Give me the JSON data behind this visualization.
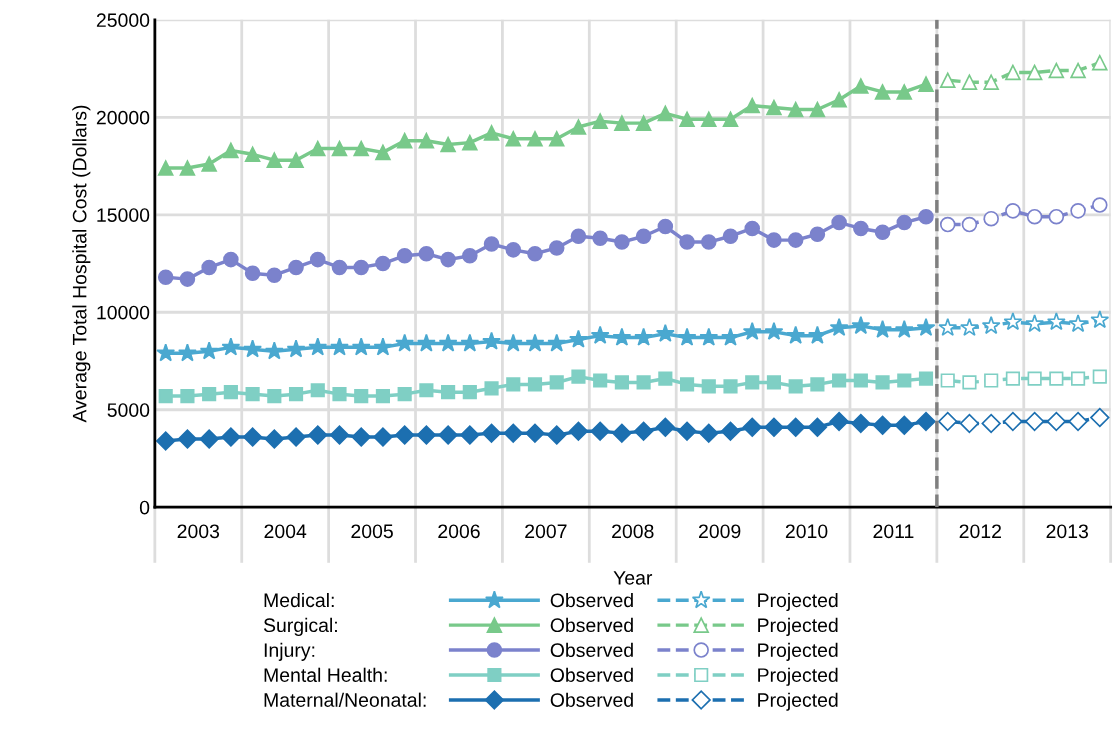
{
  "chart_data": {
    "type": "line",
    "xlabel": "Year",
    "ylabel": "Average Total Hospital Cost (Dollars)",
    "annotations": [
      "Medical:",
      "Surgical:",
      "Injury:",
      "Mental Health:",
      "Maternal/Neonatal:"
    ],
    "xlim": [
      2003,
      2014
    ],
    "xticks": [
      {
        "value": 2003,
        "label": null
      },
      {
        "value": 2003.5,
        "label": "2003"
      },
      {
        "value": 2004,
        "label": null
      },
      {
        "value": 2004.5,
        "label": "2004"
      },
      {
        "value": 2005,
        "label": null
      },
      {
        "value": 2005.5,
        "label": "2005"
      },
      {
        "value": 2006,
        "label": null
      },
      {
        "value": 2006.5,
        "label": "2006"
      },
      {
        "value": 2007,
        "label": null
      },
      {
        "value": 2007.5,
        "label": "2007"
      },
      {
        "value": 2008,
        "label": null
      },
      {
        "value": 2008.5,
        "label": "2008"
      },
      {
        "value": 2009,
        "label": null
      },
      {
        "value": 2009.5,
        "label": "2009"
      },
      {
        "value": 2010,
        "label": null
      },
      {
        "value": 2010.5,
        "label": "2010"
      },
      {
        "value": 2011,
        "label": null
      },
      {
        "value": 2011.5,
        "label": "2011"
      },
      {
        "value": 2012,
        "label": null
      },
      {
        "value": 2012.5,
        "label": "2012"
      },
      {
        "value": 2013,
        "label": null
      },
      {
        "value": 2013.5,
        "label": "2013"
      },
      {
        "value": 2014,
        "label": null
      }
    ],
    "ylim": [
      0,
      25000
    ],
    "yticks": [
      0,
      5000,
      10000,
      15000,
      20000,
      25000
    ],
    "grid": true,
    "legend": "bottom",
    "ref_lines": [
      {
        "axis": "x",
        "value": 2012,
        "color": "#7f7f7f",
        "line_style": "dashed"
      }
    ],
    "series": [
      {
        "name": "Observed",
        "color": "#4aa8d0",
        "marker": "star",
        "line_style": "solid",
        "x": [
          2003.125,
          2003.375,
          2003.625,
          2003.875,
          2004.125,
          2004.375,
          2004.625,
          2004.875,
          2005.125,
          2005.375,
          2005.625,
          2005.875,
          2006.125,
          2006.375,
          2006.625,
          2006.875,
          2007.125,
          2007.375,
          2007.625,
          2007.875,
          2008.125,
          2008.375,
          2008.625,
          2008.875,
          2009.125,
          2009.375,
          2009.625,
          2009.875,
          2010.125,
          2010.375,
          2010.625,
          2010.875,
          2011.125,
          2011.375,
          2011.625,
          2011.875
        ],
        "values": [
          7900,
          7900,
          8000,
          8200,
          8100,
          8000,
          8100,
          8200,
          8200,
          8200,
          8200,
          8400,
          8400,
          8400,
          8400,
          8500,
          8400,
          8400,
          8400,
          8600,
          8800,
          8700,
          8700,
          8900,
          8700,
          8700,
          8700,
          9000,
          9000,
          8800,
          8800,
          9200,
          9300,
          9100,
          9100,
          9200
        ]
      },
      {
        "name": "Observed",
        "color": "#78c98a",
        "marker": "triangle",
        "line_style": "solid",
        "x": [
          2003.125,
          2003.375,
          2003.625,
          2003.875,
          2004.125,
          2004.375,
          2004.625,
          2004.875,
          2005.125,
          2005.375,
          2005.625,
          2005.875,
          2006.125,
          2006.375,
          2006.625,
          2006.875,
          2007.125,
          2007.375,
          2007.625,
          2007.875,
          2008.125,
          2008.375,
          2008.625,
          2008.875,
          2009.125,
          2009.375,
          2009.625,
          2009.875,
          2010.125,
          2010.375,
          2010.625,
          2010.875,
          2011.125,
          2011.375,
          2011.625,
          2011.875
        ],
        "values": [
          17400,
          17400,
          17600,
          18300,
          18100,
          17800,
          17800,
          18400,
          18400,
          18400,
          18200,
          18800,
          18800,
          18600,
          18700,
          19200,
          18900,
          18900,
          18900,
          19500,
          19800,
          19700,
          19700,
          20200,
          19900,
          19900,
          19900,
          20600,
          20500,
          20400,
          20400,
          20900,
          21600,
          21300,
          21300,
          21700
        ]
      },
      {
        "name": "Observed",
        "color": "#7b82cc",
        "marker": "circle",
        "line_style": "solid",
        "x": [
          2003.125,
          2003.375,
          2003.625,
          2003.875,
          2004.125,
          2004.375,
          2004.625,
          2004.875,
          2005.125,
          2005.375,
          2005.625,
          2005.875,
          2006.125,
          2006.375,
          2006.625,
          2006.875,
          2007.125,
          2007.375,
          2007.625,
          2007.875,
          2008.125,
          2008.375,
          2008.625,
          2008.875,
          2009.125,
          2009.375,
          2009.625,
          2009.875,
          2010.125,
          2010.375,
          2010.625,
          2010.875,
          2011.125,
          2011.375,
          2011.625,
          2011.875
        ],
        "values": [
          11800,
          11700,
          12300,
          12700,
          12000,
          11900,
          12300,
          12700,
          12300,
          12300,
          12500,
          12900,
          13000,
          12700,
          12900,
          13500,
          13200,
          13000,
          13300,
          13900,
          13800,
          13600,
          13900,
          14400,
          13600,
          13600,
          13900,
          14300,
          13700,
          13700,
          14000,
          14600,
          14300,
          14100,
          14600,
          14900
        ]
      },
      {
        "name": "Observed",
        "color": "#7fcfc4",
        "marker": "square",
        "line_style": "solid",
        "x": [
          2003.125,
          2003.375,
          2003.625,
          2003.875,
          2004.125,
          2004.375,
          2004.625,
          2004.875,
          2005.125,
          2005.375,
          2005.625,
          2005.875,
          2006.125,
          2006.375,
          2006.625,
          2006.875,
          2007.125,
          2007.375,
          2007.625,
          2007.875,
          2008.125,
          2008.375,
          2008.625,
          2008.875,
          2009.125,
          2009.375,
          2009.625,
          2009.875,
          2010.125,
          2010.375,
          2010.625,
          2010.875,
          2011.125,
          2011.375,
          2011.625,
          2011.875
        ],
        "values": [
          5700,
          5700,
          5800,
          5900,
          5800,
          5700,
          5800,
          6000,
          5800,
          5700,
          5700,
          5800,
          6000,
          5900,
          5900,
          6100,
          6300,
          6300,
          6400,
          6700,
          6500,
          6400,
          6400,
          6600,
          6300,
          6200,
          6200,
          6400,
          6400,
          6200,
          6300,
          6500,
          6500,
          6400,
          6500,
          6600
        ]
      },
      {
        "name": "Observed",
        "color": "#1c6fb0",
        "marker": "diamond",
        "line_style": "solid",
        "x": [
          2003.125,
          2003.375,
          2003.625,
          2003.875,
          2004.125,
          2004.375,
          2004.625,
          2004.875,
          2005.125,
          2005.375,
          2005.625,
          2005.875,
          2006.125,
          2006.375,
          2006.625,
          2006.875,
          2007.125,
          2007.375,
          2007.625,
          2007.875,
          2008.125,
          2008.375,
          2008.625,
          2008.875,
          2009.125,
          2009.375,
          2009.625,
          2009.875,
          2010.125,
          2010.375,
          2010.625,
          2010.875,
          2011.125,
          2011.375,
          2011.625,
          2011.875
        ],
        "values": [
          3400,
          3500,
          3500,
          3600,
          3600,
          3500,
          3600,
          3700,
          3700,
          3600,
          3600,
          3700,
          3700,
          3700,
          3700,
          3800,
          3800,
          3800,
          3700,
          3900,
          3900,
          3800,
          3900,
          4100,
          3900,
          3800,
          3900,
          4100,
          4100,
          4100,
          4100,
          4400,
          4300,
          4200,
          4200,
          4400
        ]
      },
      {
        "name": "Projected",
        "color": "#4aa8d0",
        "marker": "star",
        "line_style": "dashed",
        "x": [
          2012.125,
          2012.375,
          2012.625,
          2012.875,
          2013.125,
          2013.375,
          2013.625,
          2013.875
        ],
        "values": [
          9200,
          9200,
          9300,
          9500,
          9400,
          9500,
          9400,
          9600
        ]
      },
      {
        "name": "Projected",
        "color": "#78c98a",
        "marker": "triangle",
        "line_style": "dashed",
        "x": [
          2012.125,
          2012.375,
          2012.625,
          2012.875,
          2013.125,
          2013.375,
          2013.625,
          2013.875
        ],
        "values": [
          21900,
          21800,
          21800,
          22300,
          22300,
          22400,
          22400,
          22800
        ]
      },
      {
        "name": "Projected",
        "color": "#7b82cc",
        "marker": "circle",
        "line_style": "dashed",
        "x": [
          2012.125,
          2012.375,
          2012.625,
          2012.875,
          2013.125,
          2013.375,
          2013.625,
          2013.875
        ],
        "values": [
          14500,
          14500,
          14800,
          15200,
          14900,
          14900,
          15200,
          15500
        ]
      },
      {
        "name": "Projected",
        "color": "#7fcfc4",
        "marker": "square",
        "line_style": "dashed",
        "x": [
          2012.125,
          2012.375,
          2012.625,
          2012.875,
          2013.125,
          2013.375,
          2013.625,
          2013.875
        ],
        "values": [
          6500,
          6400,
          6500,
          6600,
          6600,
          6600,
          6600,
          6700
        ]
      },
      {
        "name": "Projected",
        "color": "#1c6fb0",
        "marker": "diamond",
        "line_style": "dashed",
        "x": [
          2012.125,
          2012.375,
          2012.625,
          2012.875,
          2013.125,
          2013.375,
          2013.625,
          2013.875
        ],
        "values": [
          4400,
          4300,
          4300,
          4400,
          4400,
          4400,
          4400,
          4600
        ]
      }
    ]
  }
}
